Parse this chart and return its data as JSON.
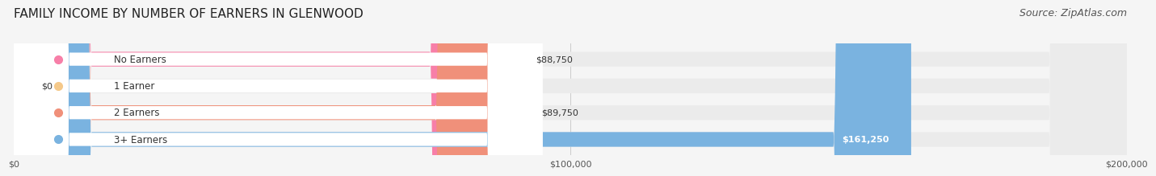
{
  "title": "FAMILY INCOME BY NUMBER OF EARNERS IN GLENWOOD",
  "source": "Source: ZipAtlas.com",
  "categories": [
    "No Earners",
    "1 Earner",
    "2 Earners",
    "3+ Earners"
  ],
  "values": [
    88750,
    0,
    89750,
    161250
  ],
  "bar_colors": [
    "#F77FA8",
    "#F5C98A",
    "#F0907A",
    "#7AB3E0"
  ],
  "label_colors": [
    "#F77FA8",
    "#F5C98A",
    "#F0907A",
    "#5B9FD4"
  ],
  "value_labels": [
    "$88,750",
    "$0",
    "$89,750",
    "$161,250"
  ],
  "value_label_inside": [
    false,
    false,
    false,
    true
  ],
  "xlim": [
    0,
    200000
  ],
  "xticks": [
    0,
    100000,
    200000
  ],
  "xticklabels": [
    "$0",
    "$100,000",
    "$200,000"
  ],
  "bg_color": "#f5f5f5",
  "bar_bg_color": "#ebebeb",
  "title_fontsize": 11,
  "source_fontsize": 9,
  "bar_height": 0.55,
  "bar_label_bg": "#ffffff"
}
